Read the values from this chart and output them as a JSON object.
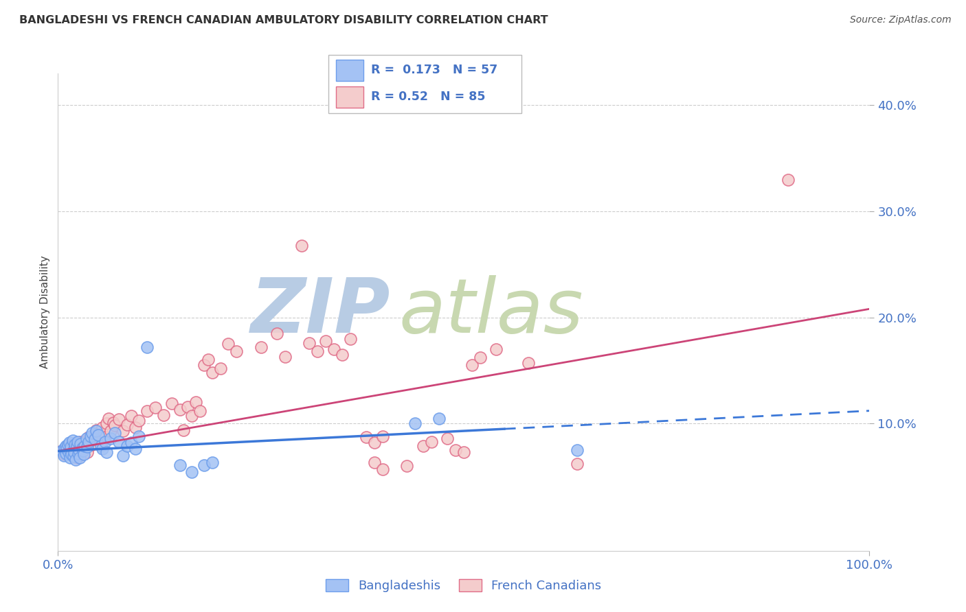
{
  "title": "BANGLADESHI VS FRENCH CANADIAN AMBULATORY DISABILITY CORRELATION CHART",
  "source": "Source: ZipAtlas.com",
  "ylabel": "Ambulatory Disability",
  "xlim": [
    0.0,
    1.0
  ],
  "ylim": [
    -0.02,
    0.43
  ],
  "yticks": [
    0.1,
    0.2,
    0.3,
    0.4
  ],
  "xticks": [
    0.0,
    1.0
  ],
  "blue_R": 0.173,
  "blue_N": 57,
  "pink_R": 0.52,
  "pink_N": 85,
  "blue_color": "#a4c2f4",
  "pink_color": "#f4cccc",
  "blue_edge_color": "#6d9eeb",
  "pink_edge_color": "#e06c88",
  "blue_line_color": "#3c78d8",
  "pink_line_color": "#cc4477",
  "blue_scatter": [
    [
      0.005,
      0.074
    ],
    [
      0.007,
      0.07
    ],
    [
      0.008,
      0.077
    ],
    [
      0.01,
      0.079
    ],
    [
      0.01,
      0.072
    ],
    [
      0.011,
      0.076
    ],
    [
      0.012,
      0.08
    ],
    [
      0.013,
      0.073
    ],
    [
      0.014,
      0.082
    ],
    [
      0.015,
      0.075
    ],
    [
      0.015,
      0.068
    ],
    [
      0.016,
      0.078
    ],
    [
      0.017,
      0.071
    ],
    [
      0.018,
      0.084
    ],
    [
      0.019,
      0.069
    ],
    [
      0.02,
      0.076
    ],
    [
      0.02,
      0.073
    ],
    [
      0.021,
      0.08
    ],
    [
      0.022,
      0.066
    ],
    [
      0.023,
      0.079
    ],
    [
      0.024,
      0.083
    ],
    [
      0.025,
      0.072
    ],
    [
      0.026,
      0.075
    ],
    [
      0.027,
      0.068
    ],
    [
      0.028,
      0.081
    ],
    [
      0.03,
      0.077
    ],
    [
      0.031,
      0.074
    ],
    [
      0.032,
      0.071
    ],
    [
      0.033,
      0.079
    ],
    [
      0.035,
      0.086
    ],
    [
      0.036,
      0.078
    ],
    [
      0.038,
      0.083
    ],
    [
      0.04,
      0.088
    ],
    [
      0.042,
      0.091
    ],
    [
      0.045,
      0.085
    ],
    [
      0.047,
      0.093
    ],
    [
      0.05,
      0.089
    ],
    [
      0.053,
      0.079
    ],
    [
      0.055,
      0.076
    ],
    [
      0.058,
      0.083
    ],
    [
      0.06,
      0.073
    ],
    [
      0.065,
      0.086
    ],
    [
      0.07,
      0.091
    ],
    [
      0.075,
      0.083
    ],
    [
      0.08,
      0.07
    ],
    [
      0.085,
      0.079
    ],
    [
      0.09,
      0.082
    ],
    [
      0.095,
      0.076
    ],
    [
      0.1,
      0.088
    ],
    [
      0.11,
      0.172
    ],
    [
      0.15,
      0.061
    ],
    [
      0.165,
      0.054
    ],
    [
      0.18,
      0.061
    ],
    [
      0.19,
      0.063
    ],
    [
      0.44,
      0.1
    ],
    [
      0.47,
      0.105
    ],
    [
      0.64,
      0.075
    ]
  ],
  "pink_scatter": [
    [
      0.005,
      0.074
    ],
    [
      0.008,
      0.071
    ],
    [
      0.01,
      0.077
    ],
    [
      0.012,
      0.075
    ],
    [
      0.013,
      0.073
    ],
    [
      0.015,
      0.079
    ],
    [
      0.016,
      0.076
    ],
    [
      0.018,
      0.072
    ],
    [
      0.019,
      0.08
    ],
    [
      0.02,
      0.074
    ],
    [
      0.021,
      0.077
    ],
    [
      0.022,
      0.073
    ],
    [
      0.023,
      0.068
    ],
    [
      0.024,
      0.082
    ],
    [
      0.025,
      0.076
    ],
    [
      0.026,
      0.07
    ],
    [
      0.027,
      0.079
    ],
    [
      0.028,
      0.083
    ],
    [
      0.03,
      0.077
    ],
    [
      0.032,
      0.075
    ],
    [
      0.033,
      0.082
    ],
    [
      0.035,
      0.078
    ],
    [
      0.036,
      0.073
    ],
    [
      0.038,
      0.087
    ],
    [
      0.04,
      0.083
    ],
    [
      0.042,
      0.08
    ],
    [
      0.045,
      0.089
    ],
    [
      0.047,
      0.094
    ],
    [
      0.05,
      0.091
    ],
    [
      0.055,
      0.096
    ],
    [
      0.058,
      0.087
    ],
    [
      0.06,
      0.1
    ],
    [
      0.062,
      0.105
    ],
    [
      0.065,
      0.093
    ],
    [
      0.068,
      0.101
    ],
    [
      0.07,
      0.098
    ],
    [
      0.075,
      0.104
    ],
    [
      0.08,
      0.093
    ],
    [
      0.085,
      0.099
    ],
    [
      0.09,
      0.107
    ],
    [
      0.095,
      0.096
    ],
    [
      0.1,
      0.103
    ],
    [
      0.11,
      0.112
    ],
    [
      0.12,
      0.115
    ],
    [
      0.13,
      0.108
    ],
    [
      0.14,
      0.119
    ],
    [
      0.15,
      0.113
    ],
    [
      0.155,
      0.094
    ],
    [
      0.16,
      0.116
    ],
    [
      0.165,
      0.107
    ],
    [
      0.17,
      0.12
    ],
    [
      0.175,
      0.112
    ],
    [
      0.18,
      0.155
    ],
    [
      0.185,
      0.16
    ],
    [
      0.19,
      0.148
    ],
    [
      0.2,
      0.152
    ],
    [
      0.21,
      0.175
    ],
    [
      0.22,
      0.168
    ],
    [
      0.25,
      0.172
    ],
    [
      0.27,
      0.185
    ],
    [
      0.28,
      0.163
    ],
    [
      0.31,
      0.176
    ],
    [
      0.32,
      0.168
    ],
    [
      0.33,
      0.178
    ],
    [
      0.34,
      0.17
    ],
    [
      0.35,
      0.165
    ],
    [
      0.36,
      0.18
    ],
    [
      0.3,
      0.268
    ],
    [
      0.38,
      0.087
    ],
    [
      0.39,
      0.082
    ],
    [
      0.4,
      0.088
    ],
    [
      0.45,
      0.079
    ],
    [
      0.46,
      0.083
    ],
    [
      0.48,
      0.086
    ],
    [
      0.49,
      0.075
    ],
    [
      0.5,
      0.073
    ],
    [
      0.51,
      0.155
    ],
    [
      0.52,
      0.162
    ],
    [
      0.54,
      0.17
    ],
    [
      0.58,
      0.157
    ],
    [
      0.64,
      0.062
    ],
    [
      0.9,
      0.33
    ],
    [
      0.39,
      0.063
    ],
    [
      0.4,
      0.057
    ],
    [
      0.43,
      0.06
    ]
  ],
  "blue_line_y_start": 0.074,
  "blue_line_y_end": 0.112,
  "blue_line_solid_end": 0.55,
  "pink_line_y_start": 0.074,
  "pink_line_y_end": 0.208,
  "watermark_zip": "ZIP",
  "watermark_atlas": "atlas",
  "watermark_color_zip": "#b8cce4",
  "watermark_color_atlas": "#c8d8b0",
  "background_color": "#ffffff",
  "grid_color": "#cccccc",
  "title_color": "#333333",
  "tick_label_color": "#4472c4",
  "legend_text_color": "#4472c4",
  "legend_r_color": "#333333"
}
